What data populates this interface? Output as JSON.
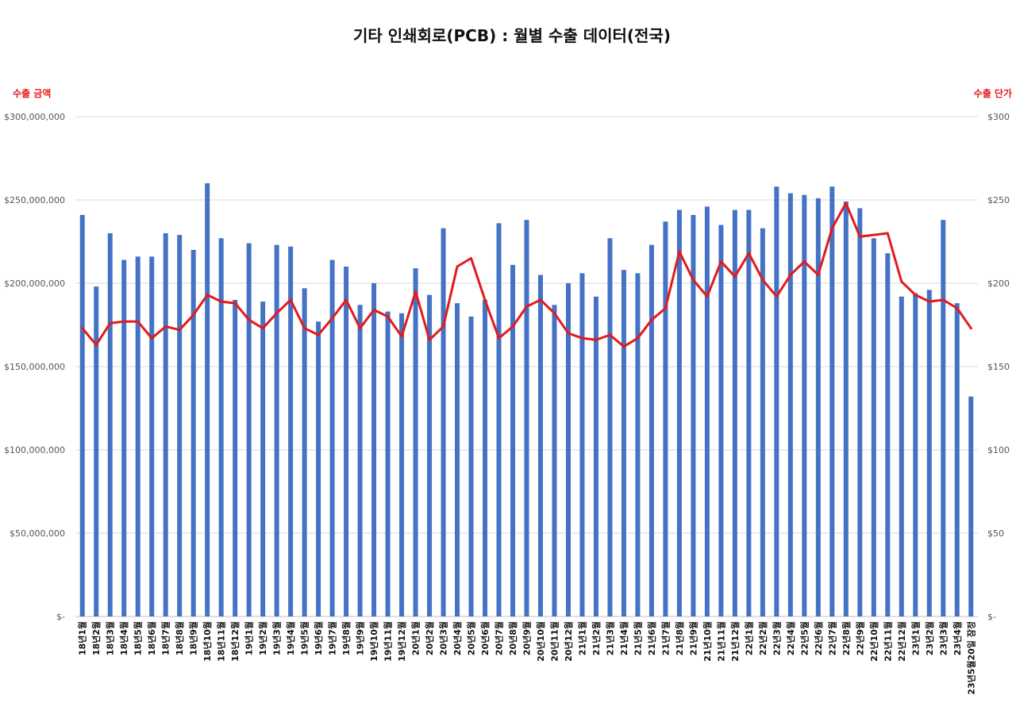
{
  "chart_data": {
    "type": "bar",
    "title": "기타 인쇄회로(PCB) : 월별 수출 데이터(전국)",
    "ylabel": "수출 금액",
    "y2label": "수출 단가",
    "ylim": [
      0,
      300000000
    ],
    "y2lim": [
      0,
      300
    ],
    "yticks": [
      "$-",
      "$50,000,000",
      "$100,000,000",
      "$150,000,000",
      "$200,000,000",
      "$250,000,000",
      "$300,000,000"
    ],
    "y2ticks": [
      "$-",
      "$50",
      "$100",
      "$150",
      "$200",
      "$250",
      "$300"
    ],
    "grid": true,
    "colors": {
      "bars": "#4472c4",
      "line": "#e31a1c"
    },
    "categories": [
      "18년1월",
      "18년2월",
      "18년3월",
      "18년4월",
      "18년5월",
      "18년6월",
      "18년7월",
      "18년8월",
      "18년9월",
      "18년10월",
      "18년11월",
      "18년12월",
      "19년1월",
      "19년2월",
      "19년3월",
      "19년4월",
      "19년5월",
      "19년6월",
      "19년7월",
      "19년8월",
      "19년9월",
      "19년10월",
      "19년11월",
      "19년12월",
      "20년1월",
      "20년2월",
      "20년3월",
      "20년4월",
      "20년5월",
      "20년6월",
      "20년7월",
      "20년8월",
      "20년9월",
      "20년10월",
      "20년11월",
      "20년12월",
      "21년1월",
      "21년2월",
      "21년3월",
      "21년4월",
      "21년5월",
      "21년6월",
      "21년7월",
      "21년8월",
      "21년9월",
      "21년10월",
      "21년11월",
      "21년12월",
      "22년1월",
      "22년2월",
      "22년3월",
      "22년4월",
      "22년5월",
      "22년6월",
      "22년7월",
      "22년8월",
      "22년9월",
      "22년10월",
      "22년11월",
      "22년12월",
      "23년1월",
      "23년2월",
      "23년3월",
      "23년4월",
      "23년5월20일 잠정"
    ],
    "series": [
      {
        "kind": "bar",
        "axis": "left",
        "values": [
          241000000,
          198000000,
          230000000,
          214000000,
          216000000,
          216000000,
          230000000,
          229000000,
          220000000,
          260000000,
          227000000,
          190000000,
          224000000,
          189000000,
          223000000,
          222000000,
          197000000,
          177000000,
          214000000,
          210000000,
          187000000,
          200000000,
          183000000,
          182000000,
          209000000,
          193000000,
          233000000,
          188000000,
          180000000,
          190000000,
          236000000,
          211000000,
          238000000,
          205000000,
          187000000,
          200000000,
          206000000,
          192000000,
          227000000,
          208000000,
          206000000,
          223000000,
          237000000,
          244000000,
          241000000,
          246000000,
          235000000,
          244000000,
          244000000,
          233000000,
          258000000,
          254000000,
          253000000,
          251000000,
          258000000,
          249000000,
          245000000,
          227000000,
          218000000,
          192000000,
          194000000,
          196000000,
          238000000,
          188000000,
          132000000
        ]
      },
      {
        "kind": "line",
        "axis": "right",
        "values": [
          173,
          163,
          176,
          177,
          177,
          167,
          174,
          172,
          181,
          193,
          189,
          188,
          178,
          173,
          182,
          190,
          173,
          169,
          179,
          190,
          173,
          184,
          180,
          168,
          195,
          166,
          174,
          210,
          215,
          190,
          167,
          174,
          186,
          190,
          182,
          170,
          167,
          166,
          169,
          162,
          167,
          178,
          185,
          219,
          202,
          192,
          213,
          204,
          218,
          202,
          192,
          205,
          213,
          205,
          233,
          248,
          228,
          229,
          230,
          201,
          193,
          189,
          190,
          185,
          173
        ]
      }
    ]
  }
}
